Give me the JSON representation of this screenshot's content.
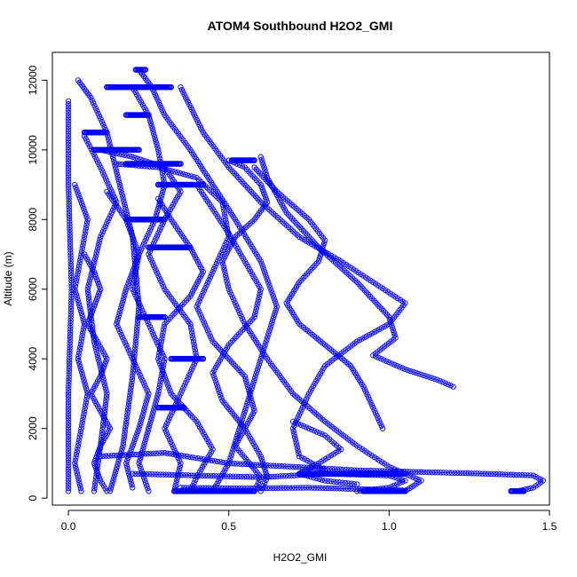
{
  "chart_data": {
    "type": "scatter",
    "title": "ATOM4 Southbound H2O2_GMI",
    "xlabel": "H2O2_GMI",
    "ylabel": "Altitude (m)",
    "xlim": [
      -0.05,
      1.5
    ],
    "ylim": [
      -200,
      12800
    ],
    "x_ticks": [
      0.0,
      0.5,
      1.0,
      1.5
    ],
    "x_tick_labels": [
      "0.0",
      "0.5",
      "1.0",
      "1.5"
    ],
    "y_ticks": [
      0,
      2000,
      4000,
      6000,
      8000,
      10000,
      12000
    ],
    "y_tick_labels": [
      "0",
      "2000",
      "4000",
      "6000",
      "8000",
      "10000",
      "12000"
    ],
    "grid": false,
    "marker": "open-circle",
    "series_color": "#0000ff",
    "series": [
      {
        "connected": true,
        "points": [
          [
            0.0,
            11400
          ],
          [
            0.0,
            9000
          ],
          [
            0.01,
            6000
          ],
          [
            0.0,
            3000
          ],
          [
            0.0,
            200
          ]
        ]
      },
      {
        "connected": true,
        "points": [
          [
            0.03,
            12000
          ],
          [
            0.07,
            11500
          ],
          [
            0.12,
            10500
          ],
          [
            0.16,
            9000
          ],
          [
            0.2,
            7500
          ],
          [
            0.22,
            5500
          ],
          [
            0.2,
            3500
          ],
          [
            0.17,
            1500
          ],
          [
            0.13,
            200
          ]
        ]
      },
      {
        "connected": true,
        "points": [
          [
            0.22,
            12300
          ],
          [
            0.26,
            11800
          ],
          [
            0.3,
            11000
          ],
          [
            0.38,
            10000
          ],
          [
            0.45,
            9000
          ],
          [
            0.52,
            8000
          ],
          [
            0.6,
            6800
          ],
          [
            0.65,
            5500
          ],
          [
            0.6,
            4000
          ],
          [
            0.55,
            2500
          ],
          [
            0.5,
            1000
          ],
          [
            0.45,
            200
          ]
        ]
      },
      {
        "connected": true,
        "points": [
          [
            0.35,
            11800
          ],
          [
            0.42,
            10500
          ],
          [
            0.5,
            9500
          ],
          [
            0.6,
            8500
          ],
          [
            0.72,
            7500
          ],
          [
            0.85,
            6800
          ],
          [
            0.95,
            6200
          ],
          [
            1.05,
            5600
          ],
          [
            1.0,
            5000
          ],
          [
            0.9,
            4500
          ],
          [
            0.8,
            3800
          ],
          [
            0.75,
            3000
          ],
          [
            0.7,
            2000
          ],
          [
            0.72,
            1200
          ],
          [
            0.8,
            800
          ]
        ]
      },
      {
        "connected": true,
        "points": [
          [
            0.6,
            9800
          ],
          [
            0.62,
            9200
          ],
          [
            0.68,
            8200
          ],
          [
            0.78,
            7200
          ],
          [
            0.9,
            6200
          ],
          [
            1.0,
            5200
          ],
          [
            1.02,
            4600
          ],
          [
            0.95,
            4100
          ],
          [
            1.05,
            3700
          ],
          [
            1.15,
            3400
          ],
          [
            1.2,
            3200
          ]
        ]
      },
      {
        "connected": true,
        "points": [
          [
            0.5,
            9700
          ],
          [
            0.55,
            9500
          ],
          [
            0.6,
            9000
          ],
          [
            0.62,
            8500
          ],
          [
            0.58,
            8000
          ],
          [
            0.52,
            7500
          ],
          [
            0.48,
            6800
          ],
          [
            0.5,
            6000
          ],
          [
            0.55,
            5000
          ],
          [
            0.62,
            4000
          ],
          [
            0.7,
            3000
          ],
          [
            0.8,
            2200
          ],
          [
            0.9,
            1500
          ],
          [
            1.0,
            900
          ],
          [
            1.1,
            500
          ],
          [
            1.05,
            200
          ]
        ]
      },
      {
        "connected": true,
        "points": [
          [
            0.05,
            10400
          ],
          [
            0.1,
            9500
          ],
          [
            0.15,
            8500
          ],
          [
            0.1,
            7500
          ],
          [
            0.06,
            6000
          ],
          [
            0.08,
            4500
          ],
          [
            0.12,
            3000
          ],
          [
            0.1,
            1500
          ],
          [
            0.08,
            200
          ]
        ]
      },
      {
        "connected": true,
        "points": [
          [
            0.1,
            10000
          ],
          [
            0.2,
            9800
          ],
          [
            0.3,
            9500
          ],
          [
            0.35,
            8800
          ],
          [
            0.3,
            8000
          ],
          [
            0.25,
            7000
          ],
          [
            0.3,
            6000
          ],
          [
            0.38,
            5000
          ],
          [
            0.4,
            4000
          ],
          [
            0.35,
            3000
          ],
          [
            0.3,
            2000
          ],
          [
            0.35,
            1000
          ],
          [
            0.33,
            200
          ]
        ]
      },
      {
        "connected": true,
        "points": [
          [
            0.15,
            9600
          ],
          [
            0.28,
            9500
          ],
          [
            0.4,
            9200
          ],
          [
            0.48,
            8500
          ],
          [
            0.5,
            7500
          ],
          [
            0.45,
            6500
          ],
          [
            0.4,
            5500
          ],
          [
            0.45,
            4500
          ],
          [
            0.55,
            3500
          ],
          [
            0.58,
            2500
          ],
          [
            0.52,
            1500
          ],
          [
            0.6,
            600
          ],
          [
            0.58,
            200
          ]
        ]
      },
      {
        "connected": true,
        "points": [
          [
            0.02,
            9000
          ],
          [
            0.06,
            8000
          ],
          [
            0.04,
            7000
          ],
          [
            0.02,
            6000
          ],
          [
            0.05,
            5000
          ],
          [
            0.03,
            4000
          ],
          [
            0.06,
            3000
          ],
          [
            0.04,
            2000
          ],
          [
            0.02,
            1000
          ],
          [
            0.04,
            200
          ]
        ]
      },
      {
        "connected": true,
        "points": [
          [
            0.12,
            8800
          ],
          [
            0.18,
            8000
          ],
          [
            0.22,
            7000
          ],
          [
            0.18,
            6000
          ],
          [
            0.15,
            5000
          ],
          [
            0.2,
            4000
          ],
          [
            0.25,
            3000
          ],
          [
            0.22,
            2000
          ],
          [
            0.18,
            1000
          ],
          [
            0.2,
            300
          ]
        ]
      },
      {
        "connected": true,
        "points": [
          [
            0.28,
            8600
          ],
          [
            0.32,
            8000
          ],
          [
            0.38,
            7200
          ],
          [
            0.42,
            6500
          ],
          [
            0.38,
            5800
          ],
          [
            0.3,
            5000
          ],
          [
            0.28,
            4000
          ],
          [
            0.32,
            3000
          ],
          [
            0.4,
            2200
          ],
          [
            0.45,
            1400
          ],
          [
            0.4,
            600
          ],
          [
            0.38,
            200
          ]
        ]
      },
      {
        "connected": true,
        "points": [
          [
            0.4,
            9000
          ],
          [
            0.45,
            8300
          ],
          [
            0.5,
            7600
          ],
          [
            0.55,
            6800
          ],
          [
            0.6,
            6000
          ],
          [
            0.58,
            5200
          ],
          [
            0.5,
            4400
          ],
          [
            0.45,
            3600
          ],
          [
            0.48,
            2800
          ],
          [
            0.55,
            2000
          ],
          [
            0.6,
            1200
          ],
          [
            0.62,
            600
          ],
          [
            0.6,
            200
          ]
        ]
      },
      {
        "connected": true,
        "points": [
          [
            0.2,
            11800
          ],
          [
            0.25,
            11000
          ],
          [
            0.28,
            10000
          ],
          [
            0.3,
            9000
          ],
          [
            0.27,
            8000
          ],
          [
            0.22,
            7000
          ],
          [
            0.2,
            6000
          ],
          [
            0.25,
            5000
          ],
          [
            0.3,
            4000
          ],
          [
            0.28,
            3000
          ],
          [
            0.25,
            2000
          ],
          [
            0.22,
            1000
          ],
          [
            0.25,
            200
          ]
        ]
      },
      {
        "connected": true,
        "points": [
          [
            0.58,
            9500
          ],
          [
            0.65,
            8800
          ],
          [
            0.75,
            8000
          ],
          [
            0.8,
            7400
          ],
          [
            0.78,
            6800
          ],
          [
            0.72,
            6200
          ],
          [
            0.68,
            5600
          ],
          [
            0.72,
            5000
          ],
          [
            0.8,
            4400
          ],
          [
            0.88,
            3800
          ],
          [
            0.92,
            3200
          ],
          [
            0.95,
            2600
          ],
          [
            0.98,
            2000
          ]
        ]
      },
      {
        "connected": true,
        "points": [
          [
            0.1,
            1200
          ],
          [
            0.3,
            1300
          ],
          [
            0.5,
            1000
          ],
          [
            0.7,
            900
          ],
          [
            0.9,
            800
          ],
          [
            1.1,
            750
          ],
          [
            1.3,
            700
          ],
          [
            1.45,
            650
          ],
          [
            1.48,
            500
          ],
          [
            1.45,
            300
          ],
          [
            1.4,
            200
          ]
        ]
      },
      {
        "connected": true,
        "points": [
          [
            0.2,
            700
          ],
          [
            0.4,
            650
          ],
          [
            0.6,
            600
          ],
          [
            0.8,
            700
          ],
          [
            1.0,
            650
          ],
          [
            1.05,
            500
          ],
          [
            1.0,
            300
          ],
          [
            0.9,
            200
          ]
        ]
      },
      {
        "connected": true,
        "points": [
          [
            0.35,
            300
          ],
          [
            0.55,
            280
          ],
          [
            0.75,
            300
          ],
          [
            0.95,
            250
          ],
          [
            1.05,
            220
          ]
        ]
      },
      {
        "connected": true,
        "points": [
          [
            0.7,
            2200
          ],
          [
            0.8,
            1800
          ],
          [
            0.85,
            1400
          ],
          [
            0.78,
            1000
          ],
          [
            0.72,
            700
          ],
          [
            0.8,
            500
          ],
          [
            0.9,
            400
          ]
        ]
      },
      {
        "connected": true,
        "points": [
          [
            0.05,
            7000
          ],
          [
            0.08,
            6500
          ],
          [
            0.1,
            6000
          ],
          [
            0.08,
            5500
          ],
          [
            0.06,
            5000
          ],
          [
            0.09,
            4500
          ],
          [
            0.12,
            4000
          ],
          [
            0.1,
            3500
          ],
          [
            0.07,
            3000
          ],
          [
            0.1,
            2500
          ],
          [
            0.13,
            2000
          ],
          [
            0.1,
            1500
          ],
          [
            0.08,
            1000
          ],
          [
            0.1,
            500
          ],
          [
            0.12,
            200
          ]
        ]
      }
    ],
    "flat_segments": [
      {
        "y": 11800,
        "x": [
          0.12,
          0.32
        ]
      },
      {
        "y": 11000,
        "x": [
          0.18,
          0.25
        ]
      },
      {
        "y": 10500,
        "x": [
          0.05,
          0.12
        ]
      },
      {
        "y": 10000,
        "x": [
          0.08,
          0.22
        ]
      },
      {
        "y": 9600,
        "x": [
          0.18,
          0.35
        ]
      },
      {
        "y": 9000,
        "x": [
          0.28,
          0.42
        ]
      },
      {
        "y": 8000,
        "x": [
          0.18,
          0.3
        ]
      },
      {
        "y": 7200,
        "x": [
          0.25,
          0.38
        ]
      },
      {
        "y": 5200,
        "x": [
          0.22,
          0.3
        ]
      },
      {
        "y": 4000,
        "x": [
          0.32,
          0.42
        ]
      },
      {
        "y": 2600,
        "x": [
          0.28,
          0.36
        ]
      },
      {
        "y": 700,
        "x": [
          0.72,
          1.05
        ]
      },
      {
        "y": 200,
        "x": [
          0.33,
          0.58
        ]
      },
      {
        "y": 200,
        "x": [
          0.92,
          1.05
        ]
      },
      {
        "y": 200,
        "x": [
          1.38,
          1.42
        ]
      },
      {
        "y": 12300,
        "x": [
          0.21,
          0.24
        ]
      },
      {
        "y": 9700,
        "x": [
          0.51,
          0.58
        ]
      }
    ]
  }
}
